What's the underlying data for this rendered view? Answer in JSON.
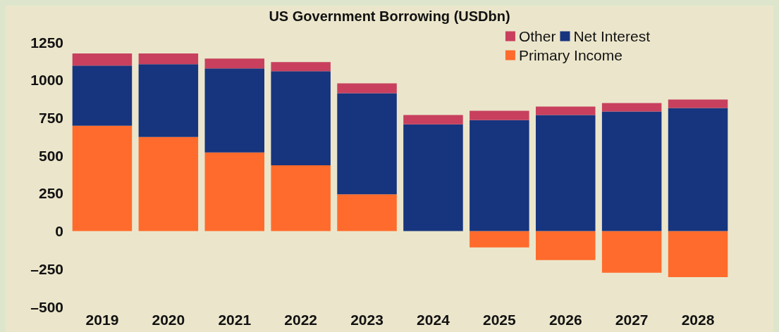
{
  "chart_data": {
    "type": "bar",
    "title": "US Government Borrowing (USDbn)",
    "categories": [
      "2019",
      "2020",
      "2021",
      "2022",
      "2023",
      "2024",
      "2025",
      "2026",
      "2027",
      "2028"
    ],
    "stacked": true,
    "series": [
      {
        "name": "Primary Income",
        "color": "#ff6b2c",
        "values": [
          697,
          623,
          520,
          435,
          243,
          0,
          -108,
          -192,
          -276,
          -304
        ]
      },
      {
        "name": "Net Interest",
        "color": "#17347e",
        "values": [
          398,
          482,
          557,
          623,
          670,
          707,
          735,
          768,
          791,
          815
        ]
      },
      {
        "name": "Other",
        "color": "#c8405e",
        "values": [
          80,
          70,
          65,
          61,
          65,
          61,
          61,
          56,
          56,
          56
        ]
      }
    ],
    "ylim": [
      -500,
      1250
    ],
    "yticks": [
      {
        "value": -500,
        "label": "–500"
      },
      {
        "value": -250,
        "label": "–250"
      },
      0,
      250,
      500,
      750,
      1000,
      1250
    ],
    "grid": false,
    "legend": "top right"
  }
}
